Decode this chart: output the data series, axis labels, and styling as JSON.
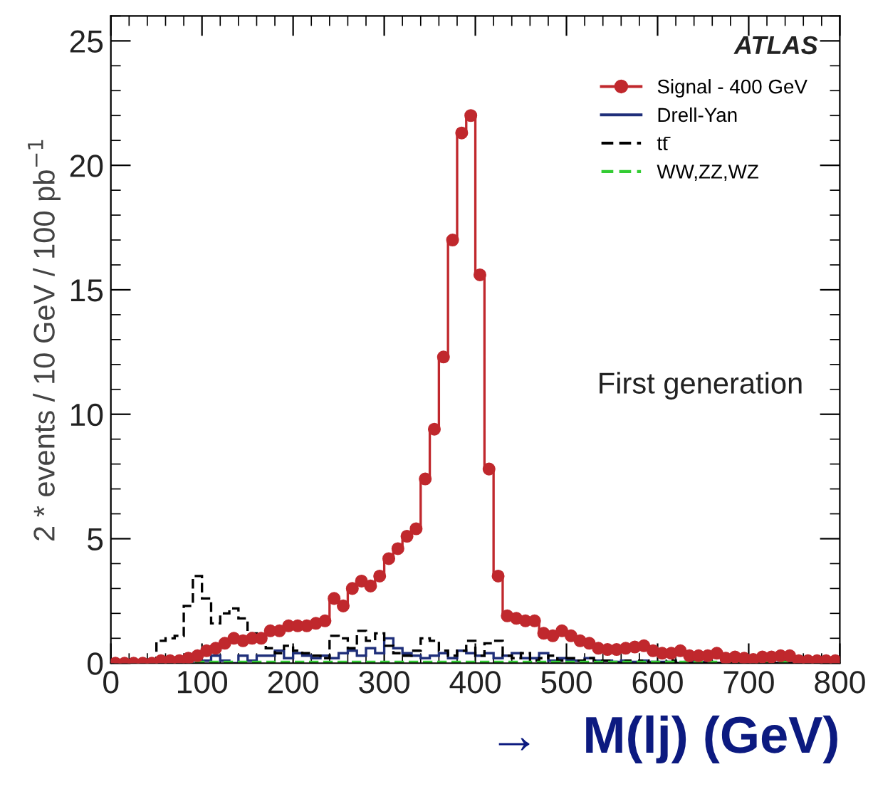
{
  "chart_data": {
    "type": "histogram",
    "ylabel": "2 * events / 10 GeV / 100 pb$^{−1}$",
    "xlabel": "→   M(lj) (GeV)",
    "annotations": [
      "ATLAS",
      "First generation"
    ],
    "bins": [
      0,
      10,
      20,
      30,
      40,
      50,
      60,
      70,
      80,
      90,
      100,
      110,
      120,
      130,
      140,
      150,
      160,
      170,
      180,
      190,
      200,
      210,
      220,
      230,
      240,
      250,
      260,
      270,
      280,
      290,
      300,
      310,
      320,
      330,
      340,
      350,
      360,
      370,
      380,
      390,
      400,
      410,
      420,
      430,
      440,
      450,
      460,
      470,
      480,
      490,
      500,
      510,
      520,
      530,
      540,
      550,
      560,
      570,
      580,
      590,
      600,
      610,
      620,
      630,
      640,
      650,
      660,
      670,
      680,
      690,
      700,
      710,
      720,
      730,
      740,
      750,
      760,
      770,
      780,
      790,
      800
    ],
    "series": [
      {
        "name": "Signal - 400 GeV",
        "type": "step",
        "color": "#c0282d",
        "marker": "circle",
        "line_style": "solid",
        "x": [
          5,
          15,
          25,
          35,
          45,
          55,
          65,
          75,
          85,
          95,
          105,
          115,
          125,
          135,
          145,
          155,
          165,
          175,
          185,
          195,
          205,
          215,
          225,
          235,
          245,
          255,
          265,
          275,
          285,
          295,
          305,
          315,
          325,
          335,
          345,
          355,
          365,
          375,
          385,
          395,
          405,
          415,
          425,
          435,
          445,
          455,
          465,
          475,
          485,
          495,
          505,
          515,
          525,
          535,
          545,
          555,
          565,
          575,
          585,
          595,
          605,
          615,
          625,
          635,
          645,
          655,
          665,
          675,
          685,
          695,
          705,
          715,
          725,
          735,
          745,
          755,
          765,
          775,
          785,
          795
        ],
        "values": [
          0,
          0,
          0,
          0,
          0,
          0.1,
          0.1,
          0.1,
          0.2,
          0.3,
          0.5,
          0.6,
          0.8,
          1.0,
          0.9,
          1.0,
          1.0,
          1.3,
          1.3,
          1.5,
          1.5,
          1.5,
          1.6,
          1.7,
          2.6,
          2.3,
          3.0,
          3.3,
          3.1,
          3.5,
          4.2,
          4.6,
          5.1,
          5.4,
          7.4,
          9.4,
          12.3,
          17.0,
          21.3,
          22.0,
          15.6,
          7.8,
          3.5,
          1.9,
          1.8,
          1.7,
          1.7,
          1.2,
          1.1,
          1.3,
          1.1,
          0.9,
          0.8,
          0.6,
          0.55,
          0.55,
          0.6,
          0.65,
          0.7,
          0.5,
          0.4,
          0.4,
          0.5,
          0.3,
          0.3,
          0.3,
          0.4,
          0.2,
          0.25,
          0.2,
          0.15,
          0.25,
          0.25,
          0.3,
          0.3,
          0.1,
          0.1,
          0.1,
          0.1,
          0.1
        ]
      },
      {
        "name": "Drell-Yan",
        "color": "#1f2f7a",
        "marker": "none",
        "line_style": "solid",
        "values": [
          0,
          0,
          0,
          0,
          0,
          0,
          0,
          0,
          0.1,
          0.1,
          0.1,
          0.3,
          0.1,
          0,
          0.3,
          0.1,
          0.3,
          0.3,
          0.5,
          0.2,
          0.4,
          0.3,
          0.2,
          0.3,
          0.2,
          0.4,
          0.5,
          0.3,
          0.6,
          0.4,
          1.0,
          0.6,
          0.4,
          0.3,
          0.2,
          0.3,
          0.4,
          0.2,
          0.5,
          0.4,
          0.3,
          0.4,
          0.2,
          0.3,
          0.4,
          0.2,
          0.2,
          0.4,
          0.1,
          0.2,
          0.1,
          0.1,
          0.2,
          0.1,
          0.1,
          0.05,
          0.1,
          0.05,
          0.1,
          0.05,
          0.05,
          0.05,
          0,
          0.05,
          0,
          0.05,
          0,
          0,
          0.05,
          0,
          0,
          0,
          0,
          0,
          0,
          0,
          0,
          0,
          0,
          0
        ]
      },
      {
        "name": "tt̄",
        "color": "#000000",
        "marker": "none",
        "line_style": "dashed",
        "values": [
          0,
          0,
          0,
          0,
          0,
          0.9,
          1.0,
          1.1,
          2.3,
          3.5,
          2.6,
          1.6,
          2.0,
          2.2,
          1.8,
          1.2,
          1.0,
          0.6,
          0.4,
          0.7,
          0.5,
          0.4,
          0.3,
          0.2,
          1.1,
          1.0,
          0.6,
          1.3,
          0.9,
          1.2,
          0.7,
          0.4,
          0.3,
          0.5,
          1.0,
          0.9,
          0.5,
          0.3,
          0.5,
          0.9,
          0.3,
          0.8,
          0.9,
          0.3,
          0.2,
          0.4,
          0.1,
          0.2,
          0.3,
          0.1,
          0.2,
          0.1,
          0.2,
          0.1,
          0.1,
          0,
          0.1,
          0,
          0.1,
          0,
          0,
          0.1,
          0,
          0,
          0,
          0,
          0,
          0,
          0,
          0,
          0,
          0,
          0,
          0,
          0,
          0,
          0,
          0,
          0,
          0
        ]
      },
      {
        "name": "WW,ZZ,WZ",
        "color": "#33cc33",
        "marker": "none",
        "line_style": "dashed",
        "values": [
          0,
          0,
          0,
          0,
          0,
          0.05,
          0.05,
          0.05,
          0.05,
          0.05,
          0.05,
          0.05,
          0.05,
          0.05,
          0.05,
          0.05,
          0.05,
          0.05,
          0.05,
          0.05,
          0.05,
          0.05,
          0.05,
          0.05,
          0.05,
          0.05,
          0.05,
          0.05,
          0.05,
          0.05,
          0.05,
          0.05,
          0.05,
          0.05,
          0.05,
          0.05,
          0.05,
          0.05,
          0.05,
          0.05,
          0.05,
          0.05,
          0.05,
          0.05,
          0.05,
          0.05,
          0.05,
          0.05,
          0.05,
          0.05,
          0.05,
          0.05,
          0.05,
          0.05,
          0.05,
          0.05,
          0.05,
          0.05,
          0.05,
          0.05,
          0.05,
          0.05,
          0.05,
          0.05,
          0.05,
          0.05,
          0.05,
          0.05,
          0.05,
          0.05,
          0.05,
          0.05,
          0.05,
          0.05,
          0.05,
          0.05,
          0.05,
          0.05,
          0.05,
          0.05
        ]
      }
    ],
    "xlim": [
      0,
      800
    ],
    "xticks": [
      0,
      100,
      200,
      300,
      400,
      500,
      600,
      700,
      800
    ],
    "ylim": [
      0,
      26
    ],
    "yticks": [
      0,
      5,
      10,
      15,
      20,
      25
    ],
    "legend": "top right",
    "grid": false
  }
}
